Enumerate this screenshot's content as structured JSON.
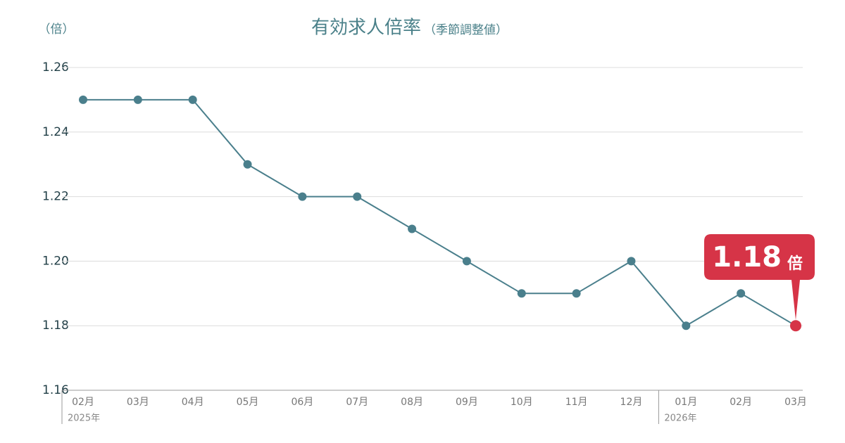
{
  "chart_data": {
    "type": "line",
    "title": "有効求人倍率",
    "subtitle": "（季節調整値）",
    "y_label": "（倍）",
    "categories": [
      "02月",
      "03月",
      "04月",
      "05月",
      "06月",
      "07月",
      "08月",
      "09月",
      "10月",
      "11月",
      "12月",
      "01月",
      "02月",
      "03月"
    ],
    "year_labels": [
      "2025年",
      null,
      null,
      null,
      null,
      null,
      null,
      null,
      null,
      null,
      null,
      "2026年",
      null,
      null
    ],
    "values": [
      1.25,
      1.25,
      1.25,
      1.23,
      1.22,
      1.22,
      1.21,
      1.2,
      1.19,
      1.19,
      1.2,
      1.18,
      1.19,
      1.18
    ],
    "color": "#4a7f8c",
    "highlight_color": "#d63447",
    "callout_unit": "倍",
    "ylim": [
      1.16,
      1.26
    ],
    "yticks": [
      1.16,
      1.18,
      {
        "value": 1.2,
        "label": "1.20"
      },
      1.22,
      1.24,
      1.26
    ],
    "grid": true
  }
}
